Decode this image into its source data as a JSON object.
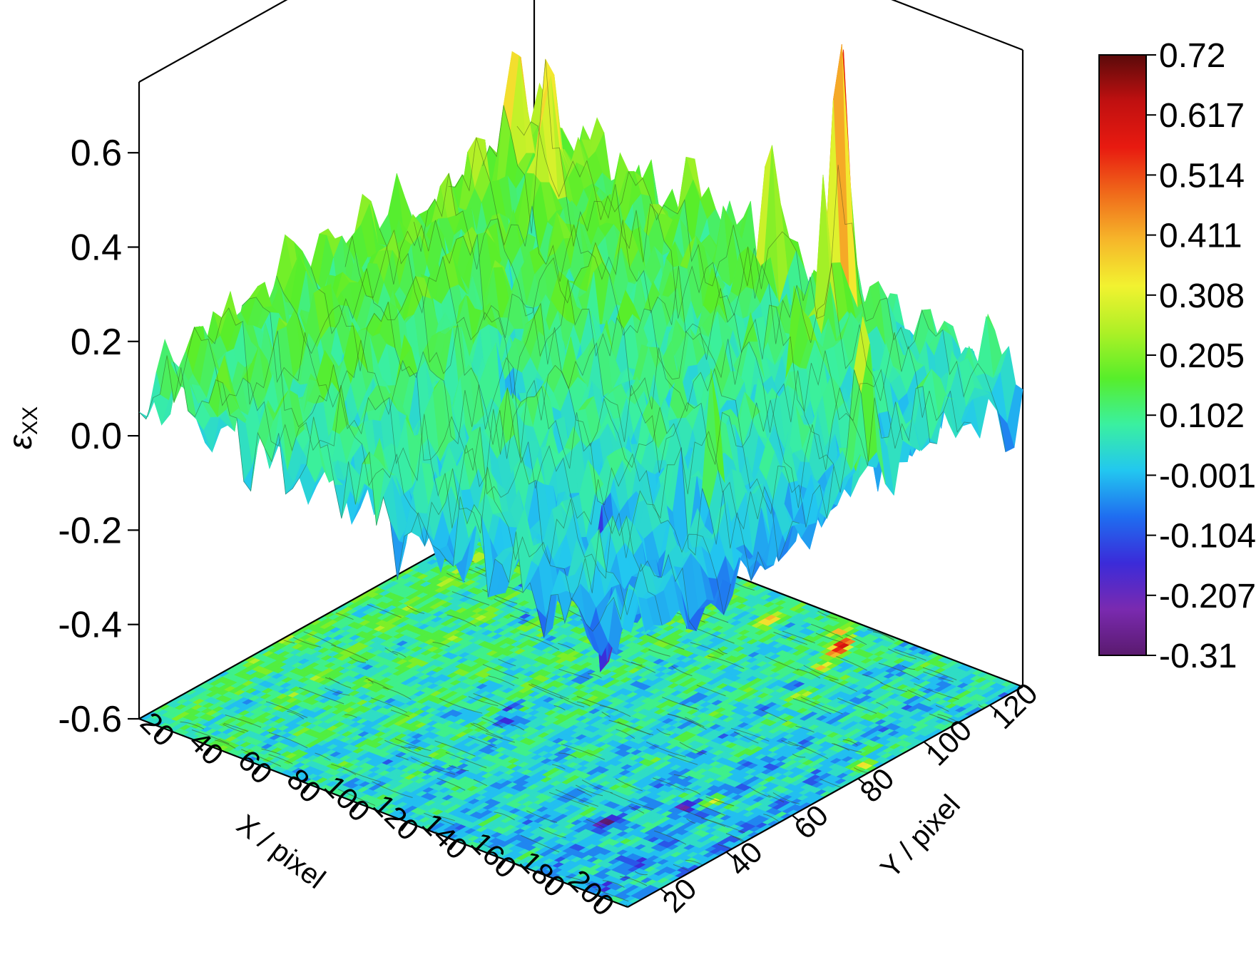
{
  "chart_data": {
    "type": "surface3d",
    "z_label": "ε",
    "z_label_sub": "XX",
    "x_label": "X / pixel",
    "y_label": "Y / pixel",
    "x_range": [
      10,
      210
    ],
    "y_range": [
      10,
      130
    ],
    "z_range": [
      -0.6,
      0.75
    ],
    "z_ticks": [
      "-0.6",
      "-0.4",
      "-0.2",
      "0.0",
      "0.2",
      "0.4",
      "0.6"
    ],
    "x_ticks": [
      "20",
      "40",
      "60",
      "80",
      "100",
      "120",
      "140",
      "160",
      "180",
      "200"
    ],
    "y_ticks": [
      "20",
      "40",
      "60",
      "80",
      "100",
      "120"
    ],
    "contour_projection": "floor",
    "colorbar": {
      "min": -0.31,
      "max": 0.72,
      "labels": [
        "0.72",
        "0.617",
        "0.514",
        "0.411",
        "0.308",
        "0.205",
        "0.102",
        "-0.001",
        "-0.104",
        "-0.207",
        "-0.31"
      ],
      "colormap": [
        "#5a1a6e",
        "#7a2ab0",
        "#3b2bd9",
        "#1f6df0",
        "#22c7f0",
        "#3af0a0",
        "#57ee2a",
        "#aef026",
        "#f2f230",
        "#f6b62a",
        "#f06a1a",
        "#e81a10",
        "#c01010",
        "#5a0a0a"
      ]
    },
    "surface_baseline": 0.08,
    "peaks": [
      {
        "x": 148,
        "y": 122,
        "z": 0.72
      },
      {
        "x": 150,
        "y": 118,
        "z": 0.71
      },
      {
        "x": 153,
        "y": 112,
        "z": 0.55
      },
      {
        "x": 120,
        "y": 120,
        "z": 0.5
      },
      {
        "x": 142,
        "y": 125,
        "z": 0.47
      },
      {
        "x": 35,
        "y": 115,
        "z": 0.42
      },
      {
        "x": 40,
        "y": 112,
        "z": 0.36
      },
      {
        "x": 20,
        "y": 118,
        "z": 0.34
      },
      {
        "x": 205,
        "y": 85,
        "z": 0.48
      },
      {
        "x": 200,
        "y": 90,
        "z": 0.3
      },
      {
        "x": 185,
        "y": 55,
        "z": 0.38
      },
      {
        "x": 160,
        "y": 100,
        "z": 0.33
      }
    ],
    "valleys": [
      {
        "x": 168,
        "y": 35,
        "z": -0.31
      },
      {
        "x": 180,
        "y": 50,
        "z": -0.22
      },
      {
        "x": 95,
        "y": 60,
        "z": -0.24
      },
      {
        "x": 100,
        "y": 55,
        "z": -0.22
      },
      {
        "x": 60,
        "y": 90,
        "z": -0.2
      },
      {
        "x": 45,
        "y": 100,
        "z": -0.21
      },
      {
        "x": 20,
        "y": 110,
        "z": -0.1
      }
    ]
  }
}
